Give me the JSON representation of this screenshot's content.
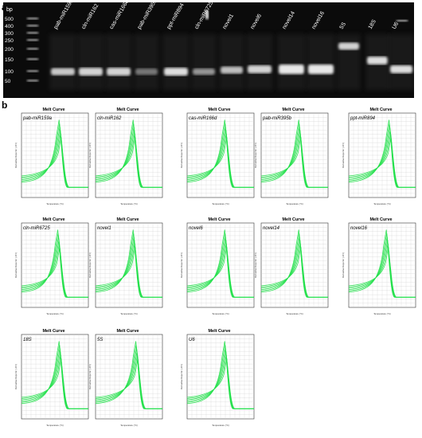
{
  "panel_a": {
    "letter": "a",
    "ladder_title": "bp",
    "ladder_marks": [
      "500",
      "400",
      "300",
      "250",
      "200",
      "150",
      "100",
      "50"
    ],
    "lanes": [
      "pab-miR159a",
      "cln-miR162",
      "cas-miR166d",
      "pab-miR395b",
      "ppt-miR894",
      "cln-miR6725",
      "novel1",
      "novel6",
      "novel14",
      "novel16",
      "5S",
      "18S",
      "U6"
    ],
    "band_colors": {
      "band": "#e8e8e8",
      "background": "#0b0b0b"
    }
  },
  "panel_b": {
    "letter": "b",
    "chart_title": "Melt Curve",
    "axis_x_label": "Temperature (°C)",
    "axis_y_label": "Derivative Reporter (-Rn')",
    "curve_color": "#22e04a",
    "charts": [
      {
        "label": "pab-miR159a"
      },
      {
        "label": "cln-miR162"
      },
      {
        "label": "cas-miR166d"
      },
      {
        "label": "pab-miR395b"
      },
      {
        "label": "ppt-miR894"
      },
      {
        "label": "cln-miR6725"
      },
      {
        "label": "novel1"
      },
      {
        "label": "novel6"
      },
      {
        "label": "novel14"
      },
      {
        "label": "novel16"
      },
      {
        "label": "18S"
      },
      {
        "label": "5S"
      },
      {
        "label": "U6"
      }
    ]
  }
}
